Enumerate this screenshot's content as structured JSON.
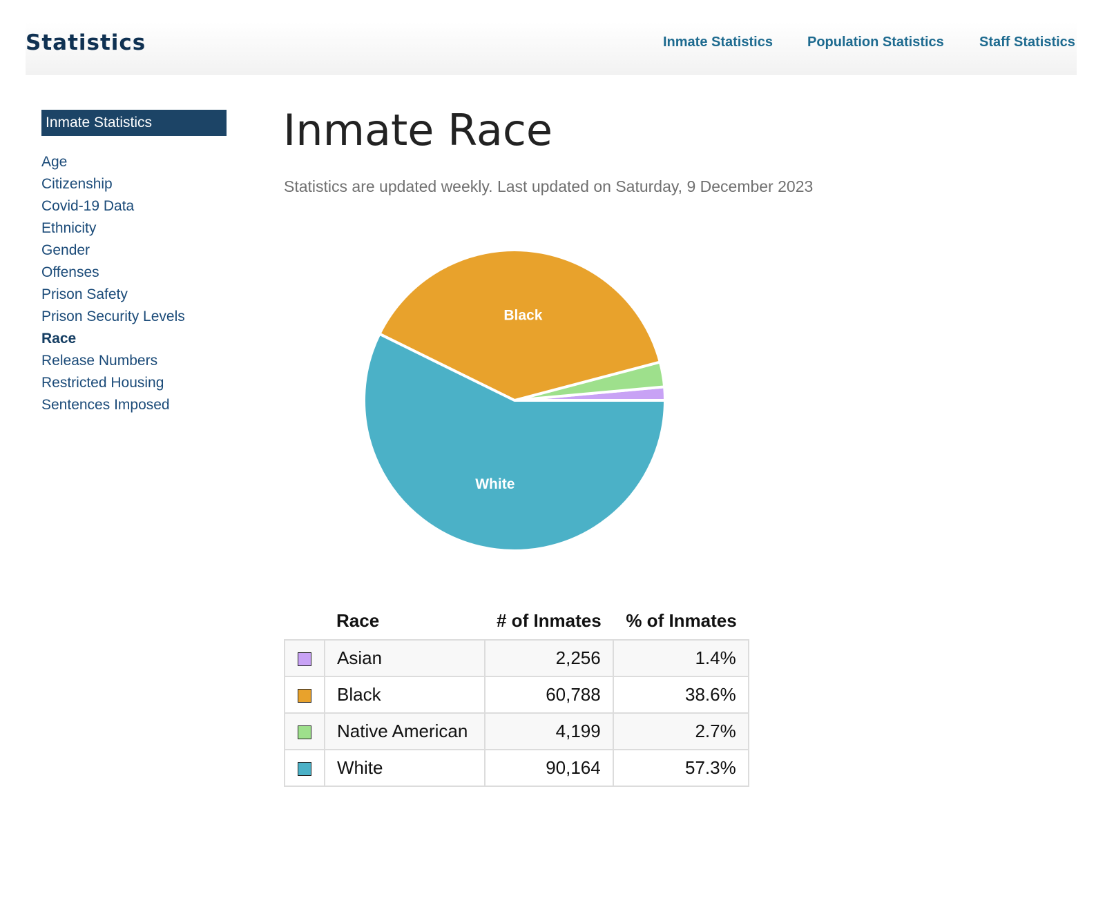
{
  "header": {
    "brand": "Statistics",
    "nav": [
      "Inmate Statistics",
      "Population Statistics",
      "Staff Statistics"
    ]
  },
  "sidebar": {
    "title": "Inmate Statistics",
    "items": [
      "Age",
      "Citizenship",
      "Covid-19 Data",
      "Ethnicity",
      "Gender",
      "Offenses",
      "Prison Safety",
      "Prison Security Levels",
      "Race",
      "Release Numbers",
      "Restricted Housing",
      "Sentences Imposed"
    ],
    "active": "Race"
  },
  "main": {
    "title": "Inmate Race",
    "subtitle": "Statistics are updated weekly. Last updated on Saturday, 9 December 2023"
  },
  "chart_data": {
    "type": "pie",
    "slices": [
      {
        "name": "Asian",
        "value": 2256,
        "percent": 1.4,
        "color": "#c8a2f5",
        "label": ""
      },
      {
        "name": "Native American",
        "value": 4199,
        "percent": 2.7,
        "color": "#9ee08c",
        "label": ""
      },
      {
        "name": "Black",
        "value": 60788,
        "percent": 38.6,
        "color": "#e8a22c",
        "label": "Black"
      },
      {
        "name": "White",
        "value": 90164,
        "percent": 57.3,
        "color": "#4bb1c7",
        "label": "White"
      }
    ]
  },
  "table": {
    "headers": [
      "Race",
      "# of Inmates",
      "% of Inmates"
    ],
    "rows": [
      {
        "race": "Asian",
        "count": "2,256",
        "pct": "1.4%",
        "color": "#c8a2f5"
      },
      {
        "race": "Black",
        "count": "60,788",
        "pct": "38.6%",
        "color": "#e8a22c"
      },
      {
        "race": "Native American",
        "count": "4,199",
        "pct": "2.7%",
        "color": "#9ee08c"
      },
      {
        "race": "White",
        "count": "90,164",
        "pct": "57.3%",
        "color": "#4bb1c7"
      }
    ]
  }
}
